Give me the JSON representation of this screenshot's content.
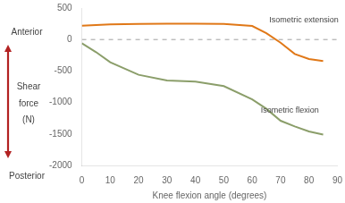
{
  "chart_data": {
    "type": "line",
    "xlabel": "Knee flexion angle (degrees)",
    "ylabel": [
      "Shear",
      "force",
      "(N)"
    ],
    "ylabel_top": "Anterior",
    "ylabel_bottom": "Posterior",
    "arrow_color": "#B22222",
    "x": [
      0,
      5,
      10,
      20,
      30,
      40,
      50,
      60,
      65,
      70,
      75,
      80,
      85
    ],
    "series": [
      {
        "color": "#E07818",
        "values": [
          220,
          230,
          240,
          248,
          250,
          250,
          248,
          215,
          100,
          -50,
          -230,
          -310,
          -340
        ]
      },
      {
        "color": "#8B9E6A",
        "values": [
          -60,
          -200,
          -360,
          -560,
          -650,
          -670,
          -740,
          -950,
          -1100,
          -1290,
          -1380,
          -1460,
          -1510
        ]
      }
    ],
    "annotations": [
      {
        "text": "Isometric extension",
        "x": 66,
        "y": 310
      },
      {
        "text": "Isometric flexion",
        "x": 63,
        "y": -1130
      }
    ],
    "reference_lines": [
      {
        "y": 0,
        "color": "#A0A0A0",
        "line_style": "dashed"
      }
    ],
    "xlim": [
      0,
      90
    ],
    "ylim": [
      -2000,
      500
    ],
    "xticks": [
      0,
      10,
      20,
      30,
      40,
      50,
      60,
      70,
      80,
      90
    ],
    "yticks": [
      500,
      0,
      -500,
      -1000,
      -1500,
      -2000
    ],
    "grid": false
  }
}
